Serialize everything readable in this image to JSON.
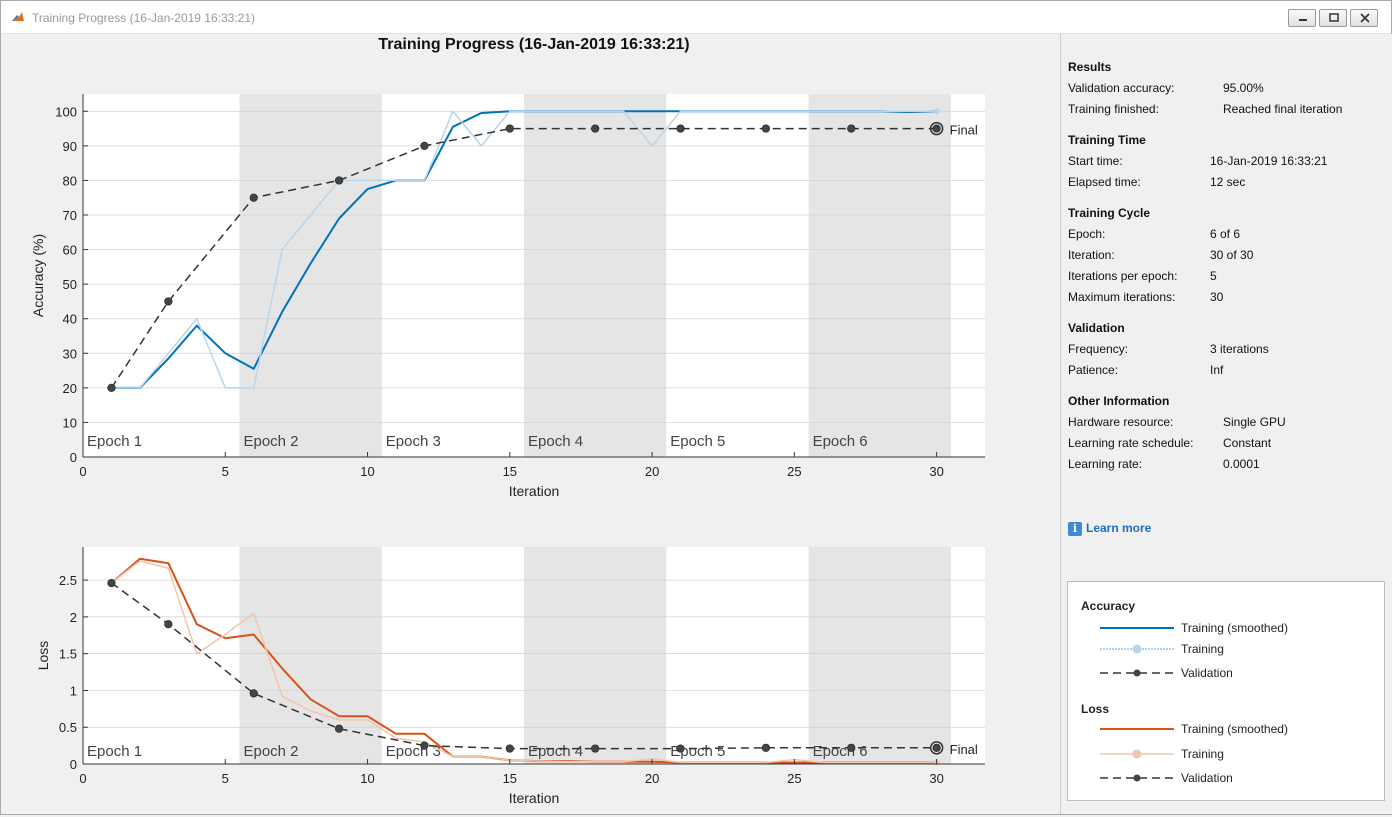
{
  "window": {
    "title": "Training Progress (16-Jan-2019 16:33:21)"
  },
  "figure": {
    "title": "Training Progress (16-Jan-2019 16:33:21)"
  },
  "results": {
    "section": "Results",
    "rows": [
      {
        "label": "Validation accuracy:",
        "value": "95.00%"
      },
      {
        "label": "Training finished:",
        "value": "Reached final iteration"
      }
    ]
  },
  "training_time": {
    "section": "Training Time",
    "rows": [
      {
        "label": "Start time:",
        "value": "16-Jan-2019 16:33:21"
      },
      {
        "label": "Elapsed time:",
        "value": "12 sec"
      }
    ]
  },
  "training_cycle": {
    "section": "Training Cycle",
    "rows": [
      {
        "label": "Epoch:",
        "value": "6 of 6"
      },
      {
        "label": "Iteration:",
        "value": "30 of 30"
      },
      {
        "label": "Iterations per epoch:",
        "value": "5"
      },
      {
        "label": "Maximum iterations:",
        "value": "30"
      }
    ]
  },
  "validation": {
    "section": "Validation",
    "rows": [
      {
        "label": "Frequency:",
        "value": "3 iterations"
      },
      {
        "label": "Patience:",
        "value": "Inf"
      }
    ]
  },
  "other": {
    "section": "Other Information",
    "rows": [
      {
        "label": "Hardware resource:",
        "value": "Single GPU"
      },
      {
        "label": "Learning rate schedule:",
        "value": "Constant"
      },
      {
        "label": "Learning rate:",
        "value": "0.0001"
      }
    ]
  },
  "learn_more": "Learn more",
  "legend": {
    "accuracy_title": "Accuracy",
    "loss_title": "Loss",
    "smoothed": "Training (smoothed)",
    "training": "Training",
    "validation": "Validation"
  },
  "colors": {
    "acc_smoothed": "#0072bd",
    "acc_raw": "#b9d5ec",
    "loss_smoothed": "#d95319",
    "loss_raw": "#f1c5ae",
    "validation": "#333333",
    "epoch_shade": "#e5e5e5"
  },
  "chart_data": [
    {
      "type": "line",
      "xlabel": "Iteration",
      "ylabel": "Accuracy (%)",
      "xlim": [
        0,
        31.7
      ],
      "ylim": [
        0,
        105
      ],
      "xticks": [
        0,
        5,
        10,
        15,
        20,
        25,
        30
      ],
      "yticks": [
        0,
        10,
        20,
        30,
        40,
        50,
        60,
        70,
        80,
        90,
        100
      ],
      "epoch_labels": [
        "Epoch 1",
        "Epoch 2",
        "Epoch 3",
        "Epoch 4",
        "Epoch 5",
        "Epoch 6"
      ],
      "final_label": "Final",
      "series": [
        {
          "name": "Training (smoothed)",
          "x": [
            1,
            2,
            3,
            4,
            5,
            6,
            7,
            8,
            9,
            10,
            11,
            12,
            13,
            14,
            15,
            16,
            17,
            18,
            19,
            20,
            21,
            22,
            23,
            24,
            25,
            26,
            27,
            28,
            29,
            30
          ],
          "values": [
            20,
            20,
            28.5,
            38,
            30,
            25.5,
            42,
            56,
            69,
            77.5,
            80,
            80,
            95.5,
            99.5,
            100,
            100,
            100,
            100,
            100,
            100,
            100,
            100,
            100,
            100,
            100,
            100,
            100,
            100,
            99.8,
            100
          ]
        },
        {
          "name": "Training",
          "x": [
            1,
            2,
            3,
            4,
            5,
            6,
            7,
            8,
            9,
            10,
            11,
            12,
            13,
            14,
            15,
            16,
            17,
            18,
            19,
            20,
            21,
            22,
            23,
            24,
            25,
            26,
            27,
            28,
            29,
            30
          ],
          "values": [
            20,
            20,
            30,
            40,
            20,
            20,
            60,
            70,
            80,
            80,
            80,
            80,
            100,
            90,
            100,
            100,
            100,
            100,
            100,
            90,
            100,
            100,
            100,
            100,
            100,
            100,
            100,
            100,
            100,
            100
          ]
        },
        {
          "name": "Validation",
          "x": [
            1,
            3,
            6,
            9,
            12,
            15,
            18,
            21,
            24,
            27,
            30
          ],
          "values": [
            20,
            45,
            75,
            80,
            90,
            95,
            95,
            95,
            95,
            95,
            95
          ]
        }
      ]
    },
    {
      "type": "line",
      "xlabel": "Iteration",
      "ylabel": "Loss",
      "xlim": [
        0,
        31.7
      ],
      "ylim": [
        0,
        2.95
      ],
      "xticks": [
        0,
        5,
        10,
        15,
        20,
        25,
        30
      ],
      "yticks": [
        0,
        0.5,
        1,
        1.5,
        2,
        2.5
      ],
      "epoch_labels": [
        "Epoch 1",
        "Epoch 2",
        "Epoch 3",
        "Epoch 4",
        "Epoch 5",
        "Epoch 6"
      ],
      "final_label": "Final",
      "series": [
        {
          "name": "Training (smoothed)",
          "x": [
            1,
            2,
            3,
            4,
            5,
            6,
            7,
            8,
            9,
            10,
            11,
            12,
            13,
            14,
            15,
            16,
            17,
            18,
            19,
            20,
            21,
            22,
            23,
            24,
            25,
            26,
            27,
            28,
            29,
            30
          ],
          "values": [
            2.46,
            2.79,
            2.73,
            1.9,
            1.71,
            1.76,
            1.3,
            0.88,
            0.65,
            0.65,
            0.41,
            0.41,
            0.1,
            0.1,
            0.05,
            0.04,
            0.04,
            0.03,
            0.03,
            0.03,
            0.02,
            0.02,
            0.02,
            0.02,
            0.02,
            0.02,
            0.02,
            0.02,
            0.02,
            0.02
          ]
        },
        {
          "name": "Training",
          "x": [
            1,
            2,
            3,
            4,
            5,
            6,
            7,
            8,
            9,
            10,
            11,
            12,
            13,
            14,
            15,
            16,
            17,
            18,
            19,
            20,
            21,
            22,
            23,
            24,
            25,
            26,
            27,
            28,
            29,
            30
          ],
          "values": [
            2.46,
            2.76,
            2.66,
            1.5,
            1.76,
            2.05,
            0.92,
            0.72,
            0.6,
            0.6,
            0.35,
            0.3,
            0.1,
            0.1,
            0.05,
            0.04,
            0.03,
            0.03,
            0.03,
            0.07,
            0.02,
            0.02,
            0.02,
            0.02,
            0.06,
            0.02,
            0.02,
            0.02,
            0.02,
            0.02
          ]
        },
        {
          "name": "Validation",
          "x": [
            1,
            3,
            6,
            9,
            12,
            15,
            18,
            21,
            24,
            27,
            30
          ],
          "values": [
            2.46,
            1.9,
            0.96,
            0.48,
            0.25,
            0.21,
            0.21,
            0.21,
            0.22,
            0.22,
            0.22
          ]
        }
      ]
    }
  ]
}
